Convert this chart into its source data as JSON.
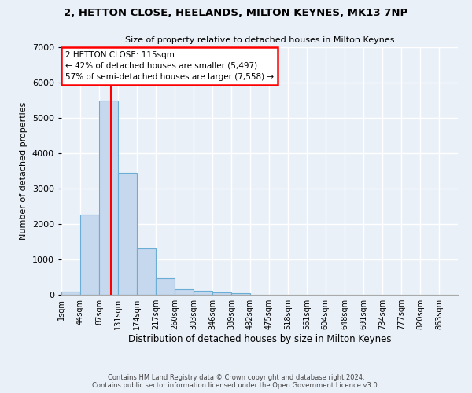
{
  "title": "2, HETTON CLOSE, HEELANDS, MILTON KEYNES, MK13 7NP",
  "subtitle": "Size of property relative to detached houses in Milton Keynes",
  "xlabel": "Distribution of detached houses by size in Milton Keynes",
  "ylabel": "Number of detached properties",
  "bar_color": "#c5d8ed",
  "bar_edge_color": "#6aaed6",
  "background_color": "#eaf0f8",
  "grid_color": "#ffffff",
  "annotation_line1": "2 HETTON CLOSE: 115sqm",
  "annotation_line2": "← 42% of detached houses are smaller (5,497)",
  "annotation_line3": "57% of semi-detached houses are larger (7,558) →",
  "property_line_x": 115,
  "categories": [
    "1sqm",
    "44sqm",
    "87sqm",
    "131sqm",
    "174sqm",
    "217sqm",
    "260sqm",
    "303sqm",
    "346sqm",
    "389sqm",
    "432sqm",
    "475sqm",
    "518sqm",
    "561sqm",
    "604sqm",
    "648sqm",
    "691sqm",
    "734sqm",
    "777sqm",
    "820sqm",
    "863sqm"
  ],
  "bin_edges": [
    1,
    44,
    87,
    131,
    174,
    217,
    260,
    303,
    346,
    389,
    432,
    475,
    518,
    561,
    604,
    648,
    691,
    734,
    777,
    820,
    863,
    906
  ],
  "bar_heights": [
    80,
    2270,
    5480,
    3440,
    1310,
    460,
    155,
    105,
    70,
    35,
    0,
    0,
    0,
    0,
    0,
    0,
    0,
    0,
    0,
    0,
    0
  ],
  "ylim": [
    0,
    7000
  ],
  "yticks": [
    0,
    1000,
    2000,
    3000,
    4000,
    5000,
    6000,
    7000
  ],
  "footer_line1": "Contains HM Land Registry data © Crown copyright and database right 2024.",
  "footer_line2": "Contains public sector information licensed under the Open Government Licence v3.0."
}
